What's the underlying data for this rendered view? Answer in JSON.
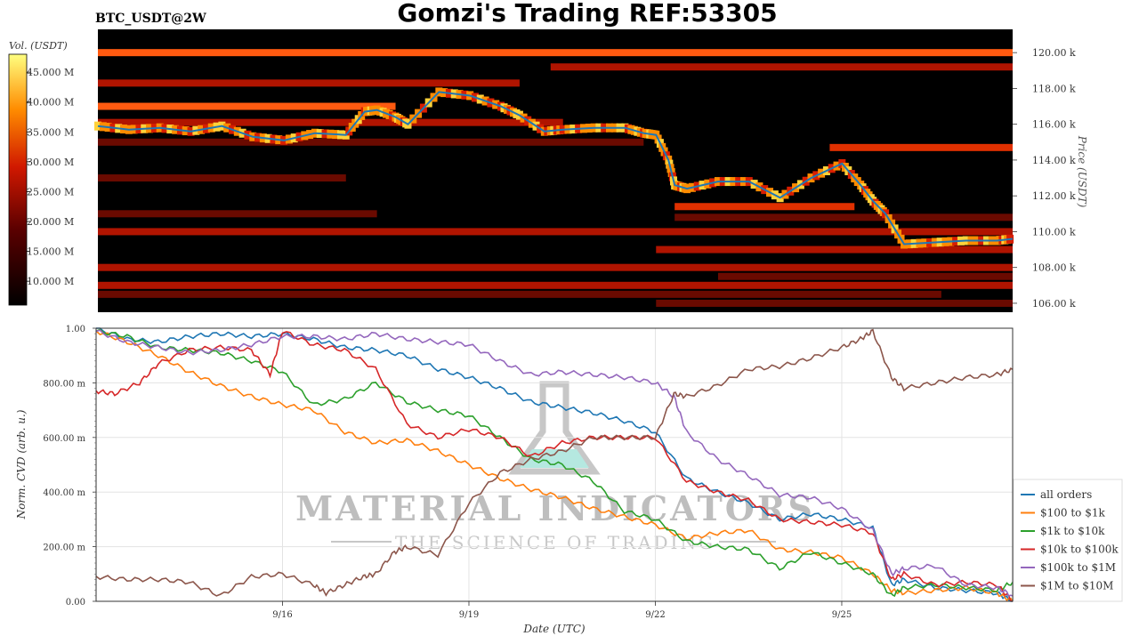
{
  "header": {
    "symbol": "BTC_USDT@2W",
    "title": "Gomzi's Trading REF:53305"
  },
  "colors": {
    "heat_low": "#000000",
    "heat_mid": "#cc1100",
    "heat_high": "#ff8800",
    "heat_max": "#ffff66",
    "price_line": "#1f77b4",
    "watermark": "#9a9a9a",
    "watermark_flask": "#7ad6c8"
  },
  "colorbar": {
    "label": "Vol. (USDT)",
    "ticks": [
      "10.000 M",
      "15.000 M",
      "20.000 M",
      "25.000 M",
      "30.000 M",
      "35.000 M",
      "40.000 M",
      "45.000 M"
    ],
    "tick_values": [
      10,
      15,
      20,
      25,
      30,
      35,
      40,
      45
    ],
    "range": [
      6,
      48
    ]
  },
  "watermark": {
    "line1": "MATERIAL INDICATORS",
    "line2": "THE SCIENCE OF TRADING"
  },
  "chart_data": [
    {
      "type": "heatmap",
      "ylabel": "Price (USDT)",
      "ylim": [
        105500,
        121300
      ],
      "ytick_labels": [
        "106.00 k",
        "108.00 k",
        "110.00 k",
        "112.00 k",
        "114.00 k",
        "116.00 k",
        "118.00 k",
        "120.00 k"
      ],
      "ytick_values": [
        106000,
        108000,
        110000,
        112000,
        114000,
        116000,
        118000,
        120000
      ],
      "x_range_days": [
        13.0,
        27.75
      ],
      "bands": [
        {
          "price": 120000,
          "x": [
            13.0,
            27.75
          ],
          "intensity": 0.6
        },
        {
          "price": 119200,
          "x": [
            20.3,
            27.75
          ],
          "intensity": 0.45
        },
        {
          "price": 118300,
          "x": [
            13.0,
            19.8
          ],
          "intensity": 0.45
        },
        {
          "price": 117000,
          "x": [
            13.0,
            17.8
          ],
          "intensity": 0.6
        },
        {
          "price": 116100,
          "x": [
            13.0,
            20.5
          ],
          "intensity": 0.45
        },
        {
          "price": 115000,
          "x": [
            13.0,
            21.8
          ],
          "intensity": 0.35
        },
        {
          "price": 114700,
          "x": [
            24.8,
            27.75
          ],
          "intensity": 0.55
        },
        {
          "price": 113000,
          "x": [
            13.0,
            17.0
          ],
          "intensity": 0.3
        },
        {
          "price": 111400,
          "x": [
            22.3,
            25.2
          ],
          "intensity": 0.55
        },
        {
          "price": 111000,
          "x": [
            13.0,
            17.5
          ],
          "intensity": 0.3
        },
        {
          "price": 110800,
          "x": [
            22.3,
            27.75
          ],
          "intensity": 0.3
        },
        {
          "price": 110000,
          "x": [
            13.0,
            27.75
          ],
          "intensity": 0.45
        },
        {
          "price": 109000,
          "x": [
            22.0,
            27.75
          ],
          "intensity": 0.4
        },
        {
          "price": 108000,
          "x": [
            13.0,
            27.75
          ],
          "intensity": 0.45
        },
        {
          "price": 107500,
          "x": [
            23.0,
            27.75
          ],
          "intensity": 0.35
        },
        {
          "price": 107000,
          "x": [
            13.0,
            27.75
          ],
          "intensity": 0.4
        },
        {
          "price": 106500,
          "x": [
            13.0,
            26.6
          ],
          "intensity": 0.25
        },
        {
          "price": 106000,
          "x": [
            22.0,
            27.75
          ],
          "intensity": 0.35
        }
      ],
      "price_series": {
        "name": "",
        "x": [
          13.0,
          13.5,
          14.0,
          14.5,
          15.0,
          15.5,
          16.0,
          16.5,
          17.0,
          17.3,
          17.5,
          17.8,
          18.0,
          18.5,
          19.0,
          19.5,
          19.8,
          20.2,
          20.5,
          21.0,
          21.5,
          21.8,
          22.0,
          22.2,
          22.3,
          22.5,
          23.0,
          23.5,
          24.0,
          24.5,
          25.0,
          25.3,
          25.5,
          25.7,
          26.0,
          26.5,
          27.0,
          27.5,
          27.75
        ],
        "y": [
          115900,
          115700,
          115800,
          115600,
          115900,
          115300,
          115100,
          115500,
          115400,
          116700,
          116800,
          116400,
          116000,
          117800,
          117600,
          117000,
          116500,
          115600,
          115700,
          115800,
          115800,
          115500,
          115400,
          114000,
          112600,
          112400,
          112800,
          112800,
          111900,
          113000,
          113800,
          112600,
          111700,
          111000,
          109300,
          109400,
          109500,
          109500,
          109600
        ]
      }
    },
    {
      "type": "line",
      "title": "",
      "xlabel": "Date (UTC)",
      "ylabel": "Norm. CVD (arb. u.)",
      "x_range_days": [
        13.0,
        27.75
      ],
      "ylim": [
        0,
        1
      ],
      "xtick_labels": [
        "9/16",
        "9/19",
        "9/22",
        "9/25"
      ],
      "xtick_values": [
        16,
        19,
        22,
        25
      ],
      "ytick_labels": [
        "0.00",
        "200.00 m",
        "400.00 m",
        "600.00 m",
        "800.00 m",
        "1.00"
      ],
      "ytick_values": [
        0,
        0.2,
        0.4,
        0.6,
        0.8,
        1.0
      ],
      "grid": true,
      "legend_position": "right",
      "series": [
        {
          "name": "all orders",
          "color": "#1f77b4",
          "x": [
            13.0,
            13.5,
            14.0,
            14.5,
            15.0,
            15.5,
            16.0,
            16.5,
            17.0,
            17.5,
            18.0,
            18.5,
            19.0,
            19.5,
            20.0,
            20.5,
            21.0,
            21.5,
            22.0,
            22.5,
            23.0,
            23.5,
            24.0,
            24.5,
            25.0,
            25.5,
            25.8,
            26.0,
            26.5,
            27.0,
            27.5,
            27.75
          ],
          "y": [
            1.0,
            0.96,
            0.95,
            0.97,
            0.98,
            0.97,
            0.98,
            0.96,
            0.93,
            0.92,
            0.9,
            0.85,
            0.82,
            0.78,
            0.73,
            0.71,
            0.69,
            0.66,
            0.62,
            0.45,
            0.4,
            0.36,
            0.3,
            0.32,
            0.3,
            0.27,
            0.06,
            0.08,
            0.05,
            0.04,
            0.03,
            0.0
          ]
        },
        {
          "name": "$100 to $1k",
          "color": "#ff7f0e",
          "x": [
            13.0,
            13.5,
            14.0,
            14.5,
            15.0,
            15.5,
            16.0,
            16.5,
            17.0,
            17.5,
            18.0,
            18.5,
            19.0,
            19.5,
            20.0,
            20.5,
            21.0,
            21.5,
            22.0,
            22.5,
            23.0,
            23.5,
            24.0,
            24.5,
            25.0,
            25.5,
            25.8,
            26.0,
            26.5,
            27.0,
            27.5,
            27.75
          ],
          "y": [
            0.99,
            0.95,
            0.9,
            0.84,
            0.79,
            0.75,
            0.72,
            0.7,
            0.62,
            0.58,
            0.59,
            0.55,
            0.5,
            0.45,
            0.41,
            0.38,
            0.34,
            0.31,
            0.28,
            0.23,
            0.25,
            0.26,
            0.19,
            0.18,
            0.16,
            0.1,
            0.04,
            0.03,
            0.04,
            0.05,
            0.03,
            0.0
          ]
        },
        {
          "name": "$1k to $10k",
          "color": "#2ca02c",
          "x": [
            13.0,
            13.5,
            14.0,
            14.5,
            15.0,
            15.5,
            16.0,
            16.5,
            17.0,
            17.5,
            18.0,
            18.5,
            19.0,
            19.5,
            20.0,
            20.5,
            21.0,
            21.5,
            22.0,
            22.5,
            23.0,
            23.5,
            24.0,
            24.5,
            25.0,
            25.5,
            25.8,
            26.0,
            26.5,
            27.0,
            27.5,
            27.75
          ],
          "y": [
            0.99,
            0.97,
            0.93,
            0.92,
            0.91,
            0.88,
            0.84,
            0.72,
            0.74,
            0.8,
            0.73,
            0.7,
            0.68,
            0.6,
            0.52,
            0.5,
            0.44,
            0.33,
            0.3,
            0.22,
            0.2,
            0.19,
            0.12,
            0.18,
            0.14,
            0.1,
            0.02,
            0.05,
            0.06,
            0.05,
            0.04,
            0.07
          ]
        },
        {
          "name": "$10k to $100k",
          "color": "#d62728",
          "x": [
            13.0,
            13.3,
            13.7,
            14.0,
            14.5,
            15.0,
            15.5,
            15.8,
            16.0,
            16.5,
            17.0,
            17.5,
            18.0,
            18.5,
            19.0,
            19.5,
            20.0,
            20.5,
            21.0,
            21.5,
            22.0,
            22.5,
            23.0,
            23.5,
            24.0,
            24.5,
            25.0,
            25.5,
            25.8,
            26.0,
            26.5,
            27.0,
            27.5,
            27.75
          ],
          "y": [
            0.77,
            0.76,
            0.8,
            0.87,
            0.92,
            0.93,
            0.92,
            0.83,
            0.99,
            0.94,
            0.92,
            0.85,
            0.65,
            0.6,
            0.63,
            0.6,
            0.53,
            0.58,
            0.6,
            0.6,
            0.6,
            0.44,
            0.4,
            0.37,
            0.3,
            0.29,
            0.28,
            0.25,
            0.08,
            0.1,
            0.06,
            0.07,
            0.06,
            0.0
          ]
        },
        {
          "name": "$100k to $1M",
          "color": "#9467bd",
          "x": [
            13.0,
            13.5,
            14.0,
            14.5,
            15.0,
            15.5,
            16.0,
            16.5,
            17.0,
            17.5,
            18.0,
            18.5,
            19.0,
            19.5,
            20.0,
            20.5,
            21.0,
            21.5,
            22.0,
            22.3,
            22.5,
            23.0,
            23.5,
            24.0,
            24.5,
            25.0,
            25.5,
            25.8,
            26.0,
            26.5,
            27.0,
            27.5,
            27.75
          ],
          "y": [
            0.99,
            0.95,
            0.93,
            0.91,
            0.92,
            0.94,
            0.97,
            0.97,
            0.96,
            0.98,
            0.96,
            0.95,
            0.94,
            0.88,
            0.83,
            0.84,
            0.83,
            0.82,
            0.8,
            0.75,
            0.62,
            0.52,
            0.46,
            0.39,
            0.38,
            0.34,
            0.26,
            0.1,
            0.12,
            0.13,
            0.06,
            0.05,
            0.02
          ]
        },
        {
          "name": "$1M to $10M",
          "color": "#8c564b",
          "x": [
            13.0,
            13.5,
            14.0,
            14.5,
            15.0,
            15.5,
            16.0,
            16.5,
            16.7,
            17.0,
            17.3,
            17.5,
            17.8,
            18.0,
            18.5,
            19.0,
            19.5,
            20.0,
            20.5,
            21.0,
            21.5,
            22.0,
            22.3,
            22.5,
            23.0,
            23.5,
            24.0,
            24.5,
            25.0,
            25.3,
            25.5,
            25.8,
            26.0,
            26.5,
            27.0,
            27.5,
            27.75
          ],
          "y": [
            0.09,
            0.08,
            0.08,
            0.07,
            0.02,
            0.09,
            0.1,
            0.06,
            0.03,
            0.06,
            0.09,
            0.1,
            0.18,
            0.2,
            0.17,
            0.36,
            0.47,
            0.52,
            0.55,
            0.6,
            0.6,
            0.6,
            0.76,
            0.75,
            0.79,
            0.85,
            0.86,
            0.89,
            0.93,
            0.96,
            0.99,
            0.82,
            0.78,
            0.8,
            0.82,
            0.83,
            0.85
          ]
        }
      ]
    }
  ]
}
